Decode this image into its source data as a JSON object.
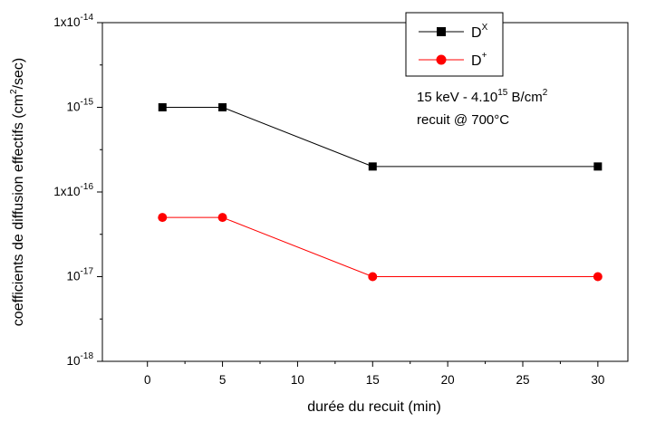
{
  "chart_data": {
    "type": "line",
    "title": "",
    "xlabel": "durée du recuit (min)",
    "ylabel": {
      "pre": "coefficients de diffusion effectifs (cm",
      "sup": "2",
      "post": "/sec)"
    },
    "xlim": [
      -3,
      32
    ],
    "ylim": [
      1e-18,
      1e-14
    ],
    "yscale": "log",
    "x_ticks": [
      0,
      5,
      10,
      15,
      20,
      25,
      30
    ],
    "y_ticks": [
      {
        "value": 1e-18,
        "base": "10",
        "exp": "-18"
      },
      {
        "value": 1e-17,
        "base": "10",
        "exp": "-17"
      },
      {
        "value": 1e-16,
        "base": "1x10",
        "exp": "-16"
      },
      {
        "value": 1e-15,
        "base": "10",
        "exp": "-15"
      },
      {
        "value": 1e-14,
        "base": "1x10",
        "exp": "-14"
      }
    ],
    "series": [
      {
        "name": {
          "base": "D",
          "sup": "X"
        },
        "color": "#000000",
        "marker": "square",
        "x": [
          1,
          5,
          15,
          30
        ],
        "y": [
          1e-15,
          1e-15,
          2e-16,
          2e-16
        ]
      },
      {
        "name": {
          "base": "D",
          "sup": "+"
        },
        "color": "#ff0000",
        "marker": "circle",
        "x": [
          1,
          5,
          15,
          30
        ],
        "y": [
          5e-17,
          5e-17,
          1e-17,
          1e-17
        ]
      }
    ],
    "annotations": {
      "line1": {
        "pre": "15 keV - 4.10",
        "sup1": "15",
        "mid": " B/cm",
        "sup2": "2"
      },
      "line2": "recuit @ 700°C"
    },
    "legend_position": "top-right",
    "grid": false
  }
}
